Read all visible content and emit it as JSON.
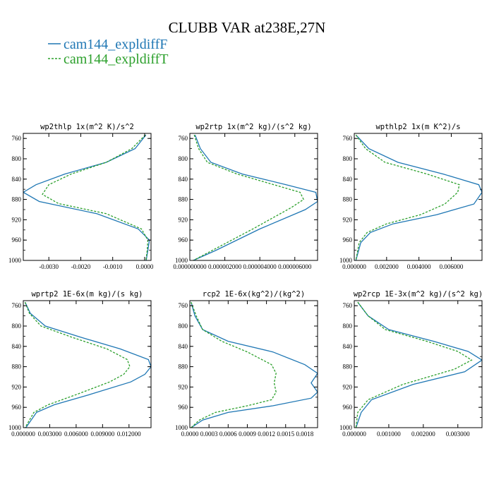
{
  "figure": {
    "title": "CLUBB VAR at238E,27N",
    "legend": [
      {
        "label": "cam144_expldiffF",
        "color": "#1f77b4",
        "dash": "solid"
      },
      {
        "label": "cam144_expldiffT",
        "color": "#2ca02c",
        "dash": "dashed"
      }
    ]
  },
  "chart_data": [
    {
      "type": "line",
      "title": "wp2thlp  1x(m^2 K)/s^2",
      "xlim": [
        -0.0038,
        0.0002
      ],
      "ylim": [
        1000,
        750
      ],
      "x_ticks": [
        -0.003,
        -0.002,
        -0.001,
        0.0
      ],
      "x_tick_labels": [
        "-0.0030",
        "-0.0020",
        "-0.0010",
        "0.0000"
      ],
      "y_ticks": [
        760,
        800,
        840,
        880,
        920,
        960,
        1000
      ],
      "series": [
        {
          "name": "cam144_expldiffF",
          "x": [
            4e-05,
            -0.0003,
            -0.0012,
            -0.0025,
            -0.0034,
            -0.0038,
            -0.0033,
            -0.0015,
            -0.0002,
            0.00015,
            0.0001,
            5e-05
          ],
          "y": [
            753,
            780,
            807,
            830,
            851,
            866,
            884,
            908,
            938,
            960,
            980,
            1000
          ]
        },
        {
          "name": "cam144_expldiffT",
          "x": [
            2e-05,
            -0.0004,
            -0.0012,
            -0.0023,
            -0.003,
            -0.0032,
            -0.0027,
            -0.0012,
            -0.0001,
            0.0001,
            8e-05,
            4e-05
          ],
          "y": [
            753,
            780,
            807,
            830,
            851,
            870,
            888,
            908,
            938,
            960,
            980,
            1000
          ]
        }
      ]
    },
    {
      "type": "line",
      "title": "wp2rtp  1x(m^2 kg)/(s^2 kg)",
      "xlim": [
        0.0,
        7.3e-06
      ],
      "ylim": [
        1000,
        750
      ],
      "x_ticks": [
        0.0,
        2e-06,
        4e-06,
        6e-06
      ],
      "x_tick_labels": [
        "0.000000000",
        "0.000002000",
        "0.000004000",
        "0.000006000"
      ],
      "y_ticks": [
        760,
        800,
        840,
        880,
        920,
        960,
        1000
      ],
      "series": [
        {
          "name": "cam144_expldiffF",
          "x": [
            3e-07,
            6e-07,
            1.2e-06,
            3e-06,
            5.5e-06,
            7.2e-06,
            7.3e-06,
            6.6e-06,
            4e-06,
            1.5e-06,
            2e-07
          ],
          "y": [
            753,
            780,
            807,
            830,
            851,
            866,
            884,
            900,
            938,
            980,
            1000
          ]
        },
        {
          "name": "cam144_expldiffT",
          "x": [
            2.5e-07,
            5e-07,
            1e-06,
            2.7e-06,
            4.8e-06,
            6.3e-06,
            6.5e-06,
            5.8e-06,
            3.6e-06,
            1.3e-06,
            2e-07
          ],
          "y": [
            753,
            780,
            807,
            830,
            851,
            866,
            880,
            896,
            938,
            980,
            1000
          ]
        }
      ]
    },
    {
      "type": "line",
      "title": "wpthlp2  1x(m K^2)/s",
      "xlim": [
        0.0,
        0.0079
      ],
      "ylim": [
        1000,
        750
      ],
      "x_ticks": [
        0.0,
        0.002,
        0.004,
        0.006
      ],
      "x_tick_labels": [
        "0.000000",
        "0.002000",
        "0.004000",
        "0.006000"
      ],
      "y_ticks": [
        760,
        800,
        840,
        880,
        920,
        960,
        1000
      ],
      "series": [
        {
          "name": "cam144_expldiffF",
          "x": [
            0.0001,
            0.0009,
            0.0027,
            0.0055,
            0.0077,
            0.0079,
            0.0074,
            0.0051,
            0.0024,
            0.001,
            0.0004,
            0.0001
          ],
          "y": [
            753,
            780,
            807,
            830,
            851,
            866,
            889,
            910,
            928,
            945,
            965,
            1000
          ]
        },
        {
          "name": "cam144_expldiffT",
          "x": [
            0.0001,
            0.0007,
            0.0019,
            0.0045,
            0.0065,
            0.0064,
            0.0056,
            0.0041,
            0.002,
            0.0008,
            0.0003,
            0.0001
          ],
          "y": [
            753,
            780,
            807,
            830,
            851,
            866,
            889,
            910,
            928,
            945,
            965,
            1000
          ]
        }
      ]
    },
    {
      "type": "line",
      "title": "wprtp2  1E-6x(m kg)/(s kg)",
      "xlim": [
        0.0,
        0.0145
      ],
      "ylim": [
        1000,
        750
      ],
      "x_ticks": [
        0.0,
        0.003,
        0.006,
        0.009,
        0.012
      ],
      "x_tick_labels": [
        "0.000000",
        "0.003000",
        "0.006000",
        "0.009000",
        "0.012000"
      ],
      "y_ticks": [
        760,
        800,
        840,
        880,
        920,
        960,
        1000
      ],
      "series": [
        {
          "name": "cam144_expldiffF",
          "x": [
            0.0002,
            0.0008,
            0.0025,
            0.0065,
            0.011,
            0.0142,
            0.0145,
            0.0138,
            0.0122,
            0.0075,
            0.0035,
            0.0015,
            0.0003
          ],
          "y": [
            753,
            775,
            800,
            822,
            845,
            866,
            880,
            895,
            910,
            935,
            955,
            970,
            1000
          ]
        },
        {
          "name": "cam144_expldiffT",
          "x": [
            0.0002,
            0.0007,
            0.002,
            0.0055,
            0.0095,
            0.0118,
            0.0121,
            0.0114,
            0.0098,
            0.006,
            0.0028,
            0.0012,
            0.0002
          ],
          "y": [
            753,
            775,
            800,
            822,
            845,
            866,
            880,
            895,
            910,
            935,
            955,
            970,
            1000
          ]
        }
      ]
    },
    {
      "type": "line",
      "title": "rcp2  1E-6x(kg^2)/(kg^2)",
      "xlim": [
        0.0,
        0.002
      ],
      "ylim": [
        1000,
        750
      ],
      "x_ticks": [
        0.0,
        0.0003,
        0.0006,
        0.0009,
        0.0012,
        0.0015,
        0.0018
      ],
      "x_tick_labels": [
        "0.0000",
        "0.0003",
        "0.0006",
        "0.0009",
        "0.0012",
        "0.0015",
        "0.0018"
      ],
      "y_ticks": [
        760,
        800,
        840,
        880,
        920,
        960,
        1000
      ],
      "series": [
        {
          "name": "cam144_expldiffF",
          "x": [
            2e-05,
            8e-05,
            0.0002,
            0.0006,
            0.0013,
            0.0018,
            0.002,
            0.0019,
            0.002,
            0.0019,
            0.0013,
            0.0006,
            0.0002,
            2e-05
          ],
          "y": [
            753,
            780,
            807,
            830,
            851,
            876,
            893,
            912,
            930,
            942,
            957,
            970,
            985,
            1000
          ]
        },
        {
          "name": "cam144_expldiffT",
          "x": [
            2e-05,
            0.0001,
            0.0002,
            0.0005,
            0.0009,
            0.00128,
            0.00135,
            0.00132,
            0.00135,
            0.00128,
            0.0009,
            0.0004,
            0.00015,
            2e-05
          ],
          "y": [
            753,
            780,
            807,
            830,
            851,
            876,
            893,
            912,
            930,
            945,
            957,
            970,
            985,
            1000
          ]
        }
      ]
    },
    {
      "type": "line",
      "title": "wp2rcp  1E-3x(m^2 kg)/(s^2 kg)",
      "xlim": [
        0.0,
        0.0037
      ],
      "ylim": [
        1000,
        750
      ],
      "x_ticks": [
        0.0,
        0.001,
        0.002,
        0.003
      ],
      "x_tick_labels": [
        "0.000000",
        "0.001000",
        "0.002000",
        "0.003000"
      ],
      "y_ticks": [
        760,
        800,
        840,
        880,
        920,
        960,
        1000
      ],
      "series": [
        {
          "name": "cam144_expldiffF",
          "x": [
            0.0001,
            0.0004,
            0.001,
            0.0023,
            0.0033,
            0.0037,
            0.0032,
            0.0017,
            0.0005,
            0.0002,
            5e-05
          ],
          "y": [
            753,
            780,
            807,
            830,
            850,
            867,
            890,
            915,
            945,
            970,
            1000
          ]
        },
        {
          "name": "cam144_expldiffT",
          "x": [
            0.0001,
            0.0004,
            0.0009,
            0.0021,
            0.003,
            0.0034,
            0.0029,
            0.0014,
            0.0004,
            0.0001,
            5e-05
          ],
          "y": [
            753,
            780,
            807,
            830,
            850,
            867,
            885,
            915,
            945,
            970,
            1000
          ]
        }
      ]
    }
  ]
}
